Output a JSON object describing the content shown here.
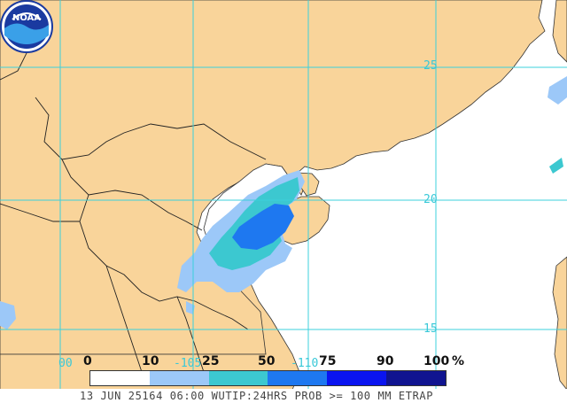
{
  "map": {
    "grid_lat_labels": [
      "25",
      "20",
      "15"
    ],
    "grid_lon_labels": [
      "105",
      "110"
    ],
    "grid_lon_partial": "00",
    "colors": {
      "land": "#f9d49a",
      "sea": "#ffffff",
      "grid": "#3cd0dc",
      "border": "#222222"
    }
  },
  "legend": {
    "ticks": [
      "0",
      "10",
      "25",
      "50",
      "75",
      "90",
      "100"
    ],
    "unit": "%",
    "colors": [
      "#ffffff",
      "#9cc8f8",
      "#3cc8d0",
      "#1e78f0",
      "#0a14f0",
      "#101490"
    ]
  },
  "footer": {
    "text": "13 JUN 25164 06:00 WUTIP:24HRS PROB >= 100 MM ETRAP"
  },
  "logo": {
    "text": "NOAA"
  }
}
